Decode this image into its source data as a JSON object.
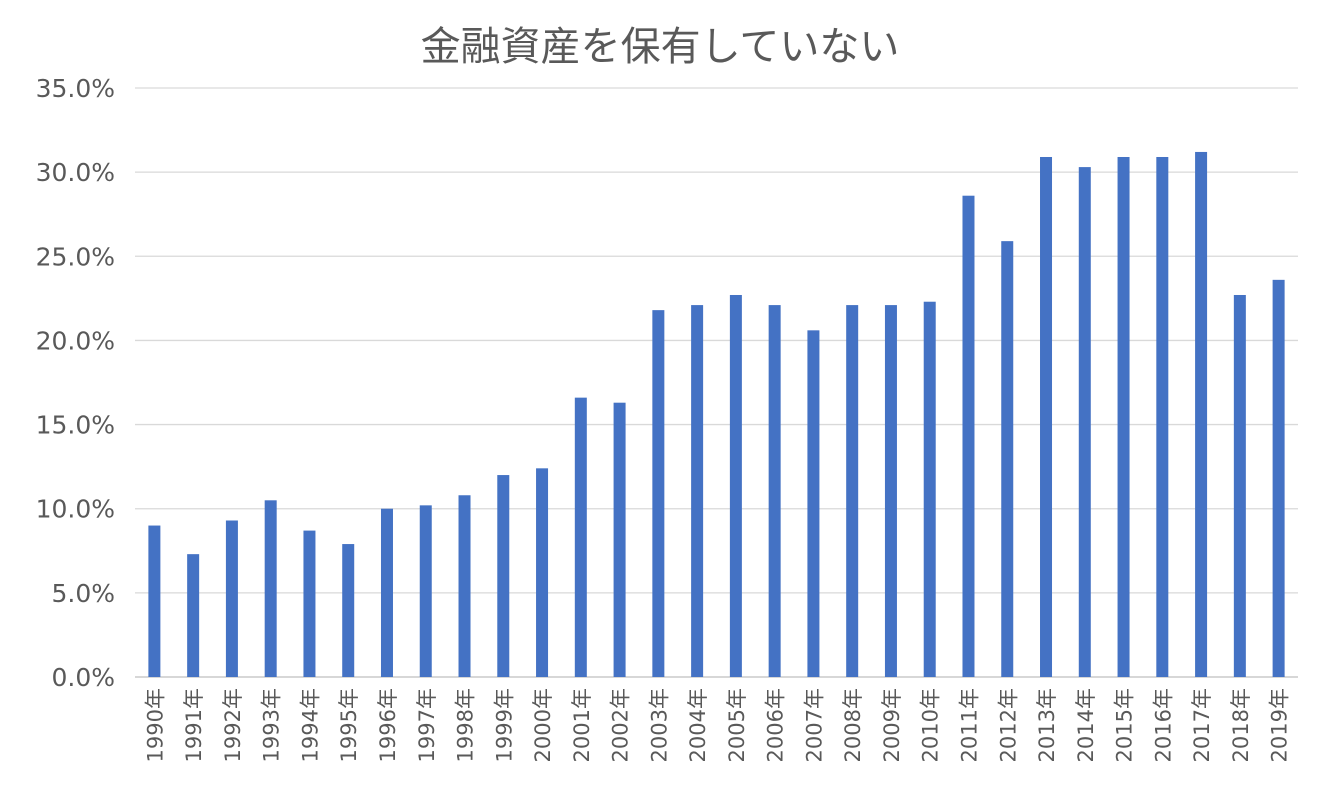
{
  "chart_data": {
    "type": "bar",
    "title": "金融資産を保有していない",
    "xlabel": "",
    "ylabel": "",
    "ylim": [
      0,
      35
    ],
    "y_tick_labels": [
      "0.0%",
      "5.0%",
      "10.0%",
      "15.0%",
      "20.0%",
      "25.0%",
      "30.0%",
      "35.0%"
    ],
    "grid": true,
    "legend": "none",
    "bar_color": "#4472C4",
    "categories": [
      "1990年",
      "1991年",
      "1992年",
      "1993年",
      "1994年",
      "1995年",
      "1996年",
      "1997年",
      "1998年",
      "1999年",
      "2000年",
      "2001年",
      "2002年",
      "2003年",
      "2004年",
      "2005年",
      "2006年",
      "2007年",
      "2008年",
      "2009年",
      "2010年",
      "2011年",
      "2012年",
      "2013年",
      "2014年",
      "2015年",
      "2016年",
      "2017年",
      "2018年",
      "2019年"
    ],
    "values": [
      9.0,
      7.3,
      9.3,
      10.5,
      8.7,
      7.9,
      10.0,
      10.2,
      10.8,
      12.0,
      12.4,
      16.6,
      16.3,
      21.8,
      22.1,
      22.7,
      22.1,
      20.6,
      22.1,
      22.1,
      22.3,
      28.6,
      25.9,
      30.9,
      30.3,
      30.9,
      30.9,
      31.2,
      22.7,
      23.6
    ]
  }
}
